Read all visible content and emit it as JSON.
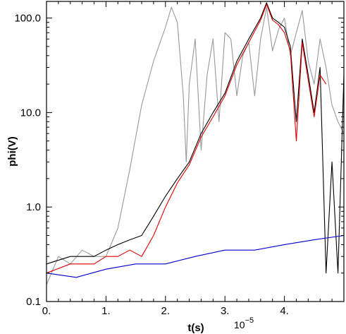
{
  "chart_data": {
    "type": "line",
    "xlabel": "t(s)",
    "ylabel": "phi(V)",
    "x_multiplier_label": "10",
    "x_multiplier_exponent": "−5",
    "xlim": [
      0.0,
      5.0
    ],
    "ylim": [
      0.1,
      150.0
    ],
    "y_scale": "log",
    "grid": false,
    "legend": "none",
    "x_ticks": [
      {
        "value": 0.0,
        "label": "0."
      },
      {
        "value": 1.0,
        "label": "1."
      },
      {
        "value": 2.0,
        "label": "2."
      },
      {
        "value": 3.0,
        "label": "3."
      },
      {
        "value": 4.0,
        "label": "4."
      }
    ],
    "y_ticks": [
      {
        "value": 0.1,
        "label": "0.1"
      },
      {
        "value": 1.0,
        "label": "1.0"
      },
      {
        "value": 10.0,
        "label": "10.0"
      },
      {
        "value": 100.0,
        "label": "100.0"
      }
    ],
    "series": [
      {
        "color": "#999999",
        "x": [
          0.0,
          0.2,
          0.4,
          0.6,
          0.8,
          1.0,
          1.2,
          1.4,
          1.6,
          1.8,
          2.0,
          2.1,
          2.2,
          2.3,
          2.35,
          2.4,
          2.5,
          2.6,
          2.7,
          2.8,
          2.9,
          3.0,
          3.1,
          3.2,
          3.3,
          3.4,
          3.5,
          3.6,
          3.7,
          3.8,
          3.9,
          4.0,
          4.1,
          4.2,
          4.3,
          4.4,
          4.5,
          4.6,
          4.7,
          4.8,
          4.9,
          5.0
        ],
        "y": [
          0.15,
          0.3,
          0.25,
          0.35,
          0.3,
          0.3,
          0.6,
          2.5,
          12,
          35,
          80,
          130,
          90,
          15,
          3,
          20,
          60,
          4,
          25,
          60,
          8,
          70,
          60,
          15,
          40,
          55,
          15,
          60,
          130,
          45,
          75,
          100,
          40,
          70,
          120,
          35,
          20,
          60,
          30,
          12,
          8,
          6
        ]
      },
      {
        "color": "#000000",
        "x": [
          0.0,
          0.4,
          0.8,
          1.0,
          1.2,
          1.4,
          1.6,
          1.8,
          2.0,
          2.2,
          2.4,
          2.6,
          2.8,
          3.0,
          3.2,
          3.4,
          3.6,
          3.7,
          3.8,
          3.9,
          4.0,
          4.1,
          4.2,
          4.3,
          4.4,
          4.5,
          4.6,
          4.7,
          4.8,
          4.9,
          5.0
        ],
        "y": [
          0.25,
          0.3,
          0.3,
          0.35,
          0.4,
          0.45,
          0.5,
          0.8,
          1.3,
          2.0,
          3.0,
          6.0,
          10.0,
          16.0,
          35.0,
          60.0,
          100.0,
          145.0,
          100.0,
          90.0,
          80.0,
          50.0,
          8.0,
          60.0,
          25.0,
          10.0,
          30.0,
          0.2,
          3.0,
          0.2,
          25.0
        ]
      },
      {
        "color": "#e00000",
        "x": [
          0.0,
          0.4,
          0.8,
          1.0,
          1.2,
          1.4,
          1.6,
          1.8,
          2.0,
          2.2,
          2.4,
          2.6,
          2.8,
          3.0,
          3.2,
          3.4,
          3.6,
          3.7,
          3.8,
          3.9,
          4.0,
          4.1,
          4.2,
          4.3,
          4.4,
          4.5,
          4.6,
          4.7
        ],
        "y": [
          0.2,
          0.25,
          0.25,
          0.3,
          0.3,
          0.35,
          0.3,
          0.5,
          1.0,
          1.8,
          2.8,
          5.5,
          9.0,
          15.0,
          32.0,
          55.0,
          95.0,
          140.0,
          95.0,
          85.0,
          70.0,
          45.0,
          5.0,
          55.0,
          22.0,
          9.0,
          25.0,
          20.0
        ]
      },
      {
        "color": "#0000cc",
        "x": [
          0.0,
          0.5,
          1.0,
          1.5,
          2.0,
          2.5,
          3.0,
          3.5,
          4.0,
          4.5,
          5.0
        ],
        "y": [
          0.2,
          0.18,
          0.22,
          0.25,
          0.25,
          0.3,
          0.35,
          0.35,
          0.4,
          0.45,
          0.5
        ]
      }
    ]
  }
}
